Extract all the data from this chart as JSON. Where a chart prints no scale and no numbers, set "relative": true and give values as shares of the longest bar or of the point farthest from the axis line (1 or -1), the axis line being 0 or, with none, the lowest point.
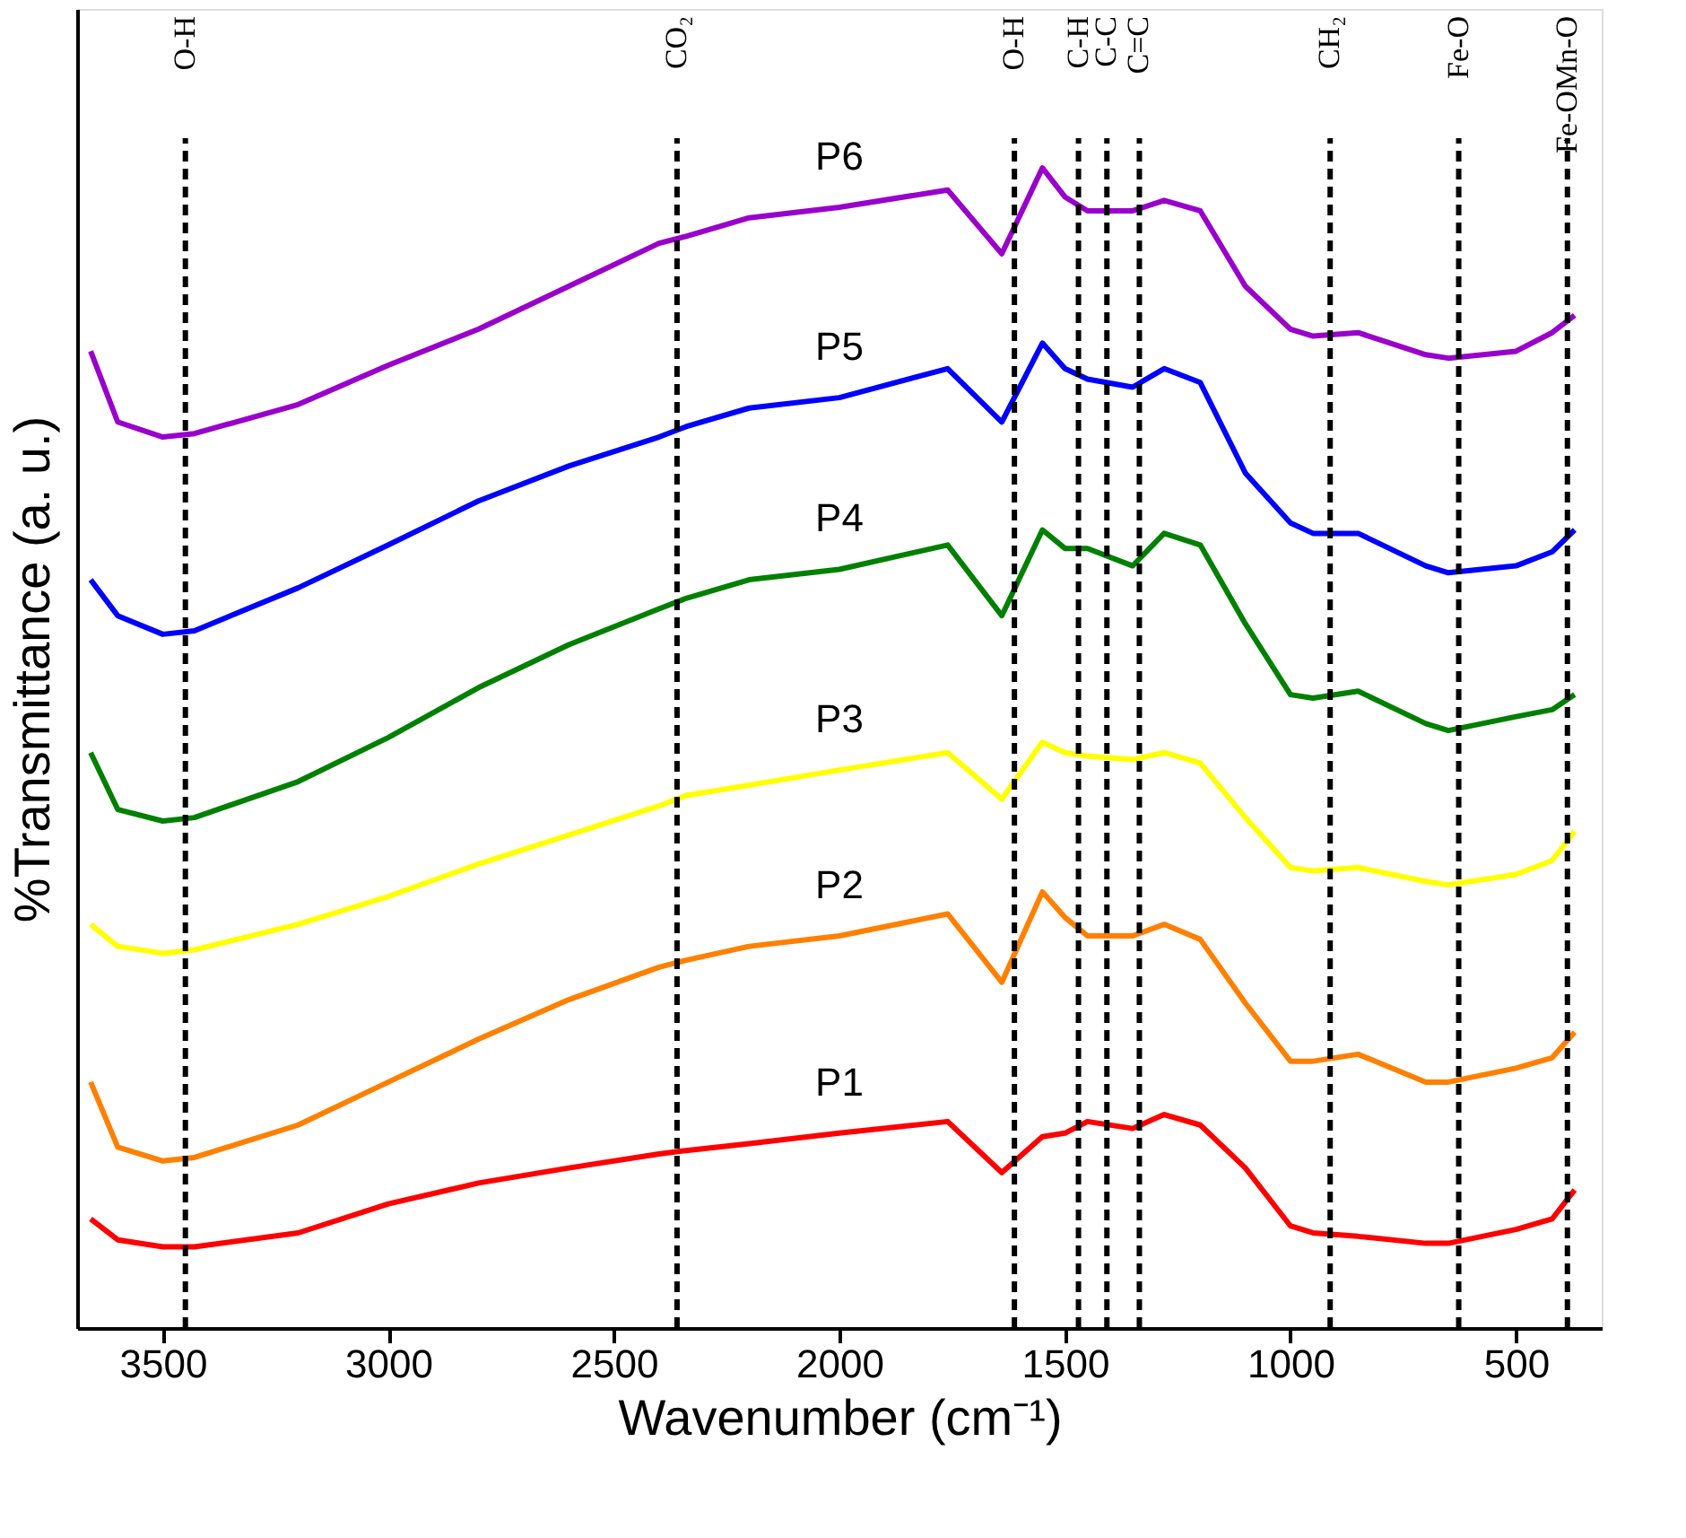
{
  "chart_data": {
    "type": "line",
    "relative": true,
    "xlabel": "Wavenumber (cm⁻¹)",
    "ylabel": "%Transmittance (a. u.)",
    "x": [
      3660,
      3600,
      3500,
      3430,
      3200,
      3000,
      2800,
      2600,
      2400,
      2340,
      2200,
      2000,
      1760,
      1640,
      1550,
      1500,
      1450,
      1350,
      1280,
      1200,
      1100,
      1000,
      950,
      850,
      700,
      650,
      500,
      420,
      370
    ],
    "xlim": [
      3690,
      310
    ],
    "xticks": [
      3500,
      3000,
      2500,
      2000,
      1500,
      1000,
      500
    ],
    "series": [
      {
        "name": "P6",
        "color": "#9900cc",
        "values": [
          0.842,
          0.781,
          0.768,
          0.771,
          0.796,
          0.83,
          0.861,
          0.898,
          0.935,
          0.941,
          0.957,
          0.966,
          0.981,
          0.926,
          1.0,
          0.975,
          0.963,
          0.963,
          0.972,
          0.963,
          0.898,
          0.861,
          0.855,
          0.858,
          0.839,
          0.836,
          0.842,
          0.858,
          0.873
        ]
      },
      {
        "name": "P5",
        "color": "#0000ff",
        "values": [
          0.645,
          0.614,
          0.598,
          0.601,
          0.638,
          0.675,
          0.713,
          0.743,
          0.768,
          0.777,
          0.793,
          0.802,
          0.827,
          0.781,
          0.849,
          0.827,
          0.818,
          0.811,
          0.827,
          0.815,
          0.737,
          0.694,
          0.685,
          0.685,
          0.657,
          0.651,
          0.657,
          0.669,
          0.688
        ]
      },
      {
        "name": "P4",
        "color": "#008000",
        "values": [
          0.496,
          0.447,
          0.437,
          0.44,
          0.471,
          0.509,
          0.552,
          0.589,
          0.62,
          0.629,
          0.645,
          0.654,
          0.675,
          0.614,
          0.688,
          0.672,
          0.672,
          0.657,
          0.685,
          0.675,
          0.607,
          0.546,
          0.543,
          0.549,
          0.521,
          0.515,
          0.527,
          0.533,
          0.546
        ]
      },
      {
        "name": "P3",
        "color": "#ffff00",
        "values": [
          0.348,
          0.329,
          0.323,
          0.326,
          0.348,
          0.372,
          0.4,
          0.425,
          0.45,
          0.459,
          0.468,
          0.481,
          0.496,
          0.456,
          0.505,
          0.496,
          0.493,
          0.49,
          0.496,
          0.487,
          0.44,
          0.397,
          0.394,
          0.397,
          0.385,
          0.382,
          0.391,
          0.403,
          0.428
        ]
      },
      {
        "name": "P2",
        "color": "#ff8000",
        "values": [
          0.212,
          0.156,
          0.144,
          0.147,
          0.175,
          0.212,
          0.249,
          0.283,
          0.311,
          0.317,
          0.329,
          0.338,
          0.357,
          0.298,
          0.376,
          0.354,
          0.338,
          0.338,
          0.348,
          0.335,
          0.28,
          0.23,
          0.23,
          0.236,
          0.212,
          0.212,
          0.224,
          0.233,
          0.255
        ]
      },
      {
        "name": "P1",
        "color": "#ff0000",
        "values": [
          0.094,
          0.076,
          0.07,
          0.07,
          0.082,
          0.107,
          0.125,
          0.138,
          0.15,
          0.153,
          0.159,
          0.168,
          0.178,
          0.134,
          0.165,
          0.168,
          0.178,
          0.172,
          0.184,
          0.175,
          0.138,
          0.088,
          0.082,
          0.079,
          0.073,
          0.073,
          0.085,
          0.094,
          0.119
        ]
      }
    ],
    "ref_lines": [
      {
        "axis": "x",
        "value": 3450,
        "label": "O-H",
        "line_style": "dashed"
      },
      {
        "axis": "x",
        "value": 2360,
        "label": "CO₂",
        "line_style": "dashed"
      },
      {
        "axis": "x",
        "value": 1612,
        "label": "O-H",
        "line_style": "dashed"
      },
      {
        "axis": "x",
        "value": 1470,
        "label": "C-H",
        "line_style": "dashed"
      },
      {
        "axis": "x",
        "value": 1407,
        "label": "C-C",
        "line_style": "dashed"
      },
      {
        "axis": "x",
        "value": 1335,
        "label": "C=C",
        "line_style": "dashed"
      },
      {
        "axis": "x",
        "value": 912,
        "label": "CH₂",
        "line_style": "dashed"
      },
      {
        "axis": "x",
        "value": 627,
        "label": "Fe-O",
        "line_style": "dashed"
      },
      {
        "axis": "x",
        "value": 386,
        "label": "Fe-OMn-O",
        "line_style": "dashed"
      }
    ]
  }
}
